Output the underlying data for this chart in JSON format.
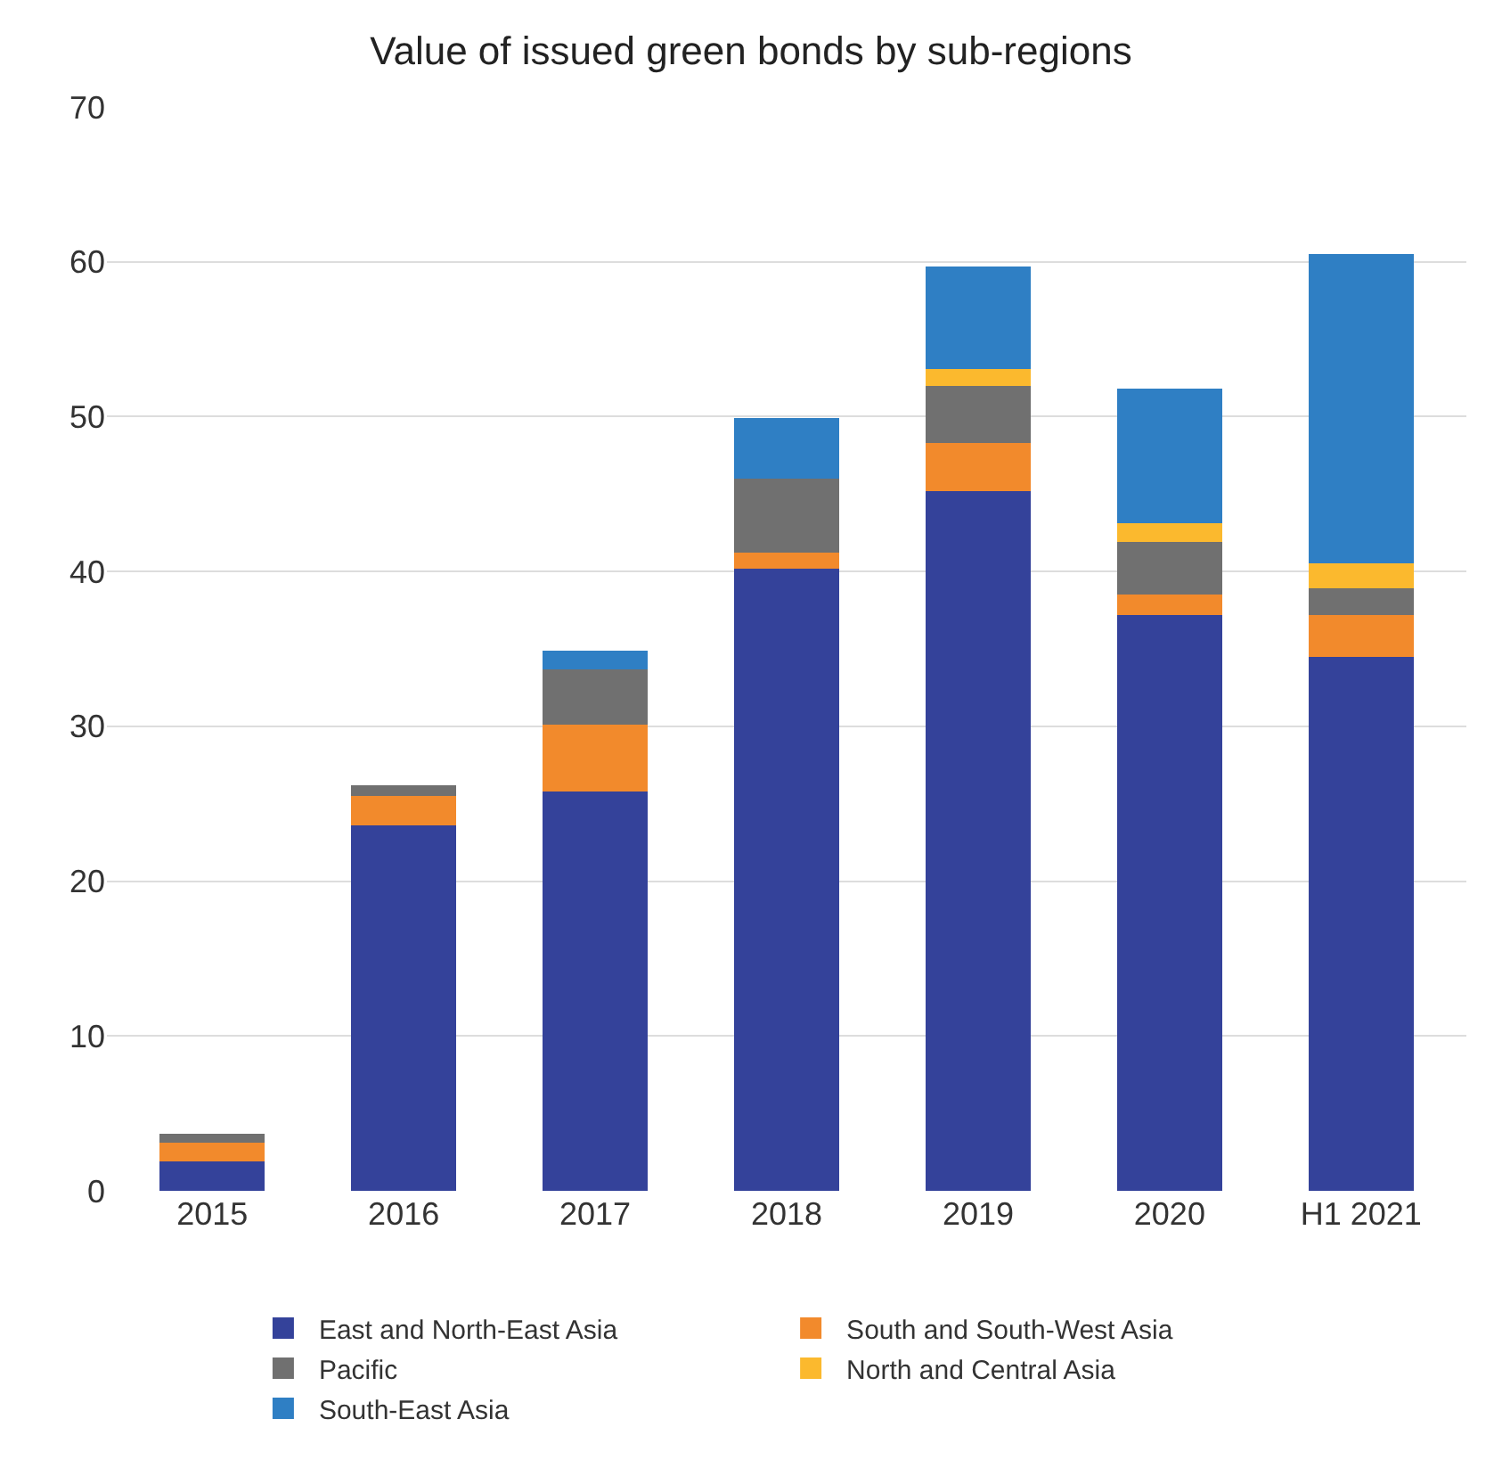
{
  "chart_data": {
    "type": "bar",
    "title": "Value of issued green bonds by sub-regions",
    "stacked": true,
    "categories": [
      "2015",
      "2016",
      "2017",
      "2018",
      "2019",
      "2020",
      "H1 2021"
    ],
    "series": [
      {
        "name": "East and North-East Asia",
        "color": "#34429a",
        "values": [
          1.9,
          23.6,
          25.8,
          40.2,
          45.2,
          37.2,
          34.5
        ]
      },
      {
        "name": "South and South-West Asia",
        "color": "#f28a2c",
        "values": [
          1.2,
          1.9,
          4.3,
          1.0,
          3.1,
          1.3,
          2.7
        ]
      },
      {
        "name": "Pacific",
        "color": "#707070",
        "values": [
          0.6,
          0.7,
          3.6,
          4.8,
          3.7,
          3.4,
          1.7
        ]
      },
      {
        "name": "North and Central Asia",
        "color": "#fbb92e",
        "values": [
          0,
          0,
          0,
          0,
          1.1,
          1.2,
          1.6
        ]
      },
      {
        "name": "South-East Asia",
        "color": "#2f7fc4",
        "values": [
          0,
          0,
          1.2,
          3.9,
          6.6,
          8.7,
          20.0
        ]
      }
    ],
    "ylim": [
      0,
      70
    ],
    "yticks": [
      0,
      10,
      20,
      30,
      40,
      50,
      60,
      70
    ],
    "grid": "y",
    "legend": "bottom"
  }
}
